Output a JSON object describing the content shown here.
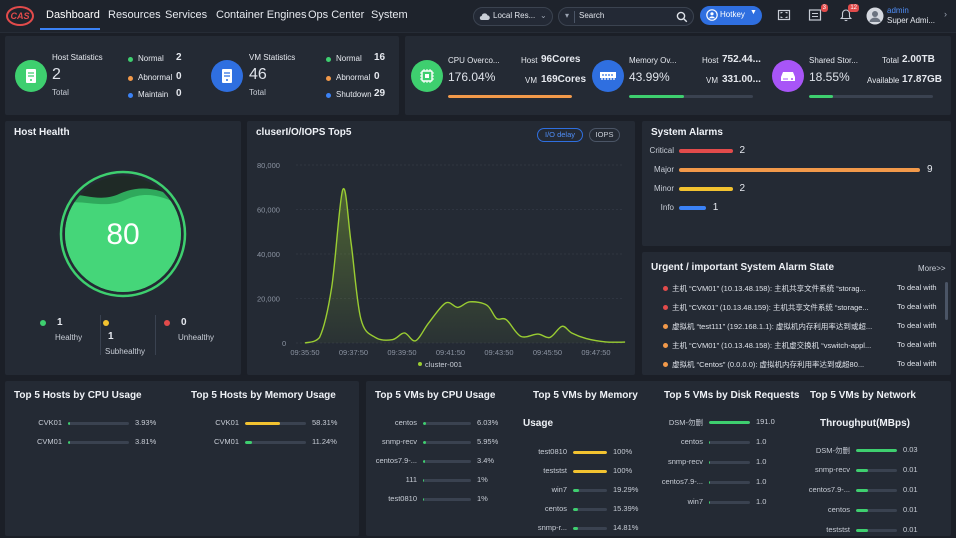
{
  "app": {
    "logo": "CAS"
  },
  "nav": [
    {
      "label": "Dashboard"
    },
    {
      "label": "Resources"
    },
    {
      "label": "Services"
    },
    {
      "label": "Container Engines"
    },
    {
      "label": "Ops Center"
    },
    {
      "label": "System"
    }
  ],
  "header": {
    "resource_select": "Local Res...",
    "search_placeholder": "Search",
    "hotkey_label": "Hotkey",
    "msg_badge": "3",
    "bell_badge": "12",
    "user_name": "admin",
    "user_role": "Super Admi..."
  },
  "host_stats": {
    "title": "Host Statistics",
    "total": "2",
    "total_label": "Total",
    "rows": [
      {
        "label": "Normal",
        "value": "2",
        "color": "#3ecf6f"
      },
      {
        "label": "Abnormal",
        "value": "0",
        "color": "#f2994a"
      },
      {
        "label": "Maintain",
        "value": "0",
        "color": "#3b82f6"
      }
    ]
  },
  "vm_stats": {
    "title": "VM Statistics",
    "total": "46",
    "total_label": "Total",
    "rows": [
      {
        "label": "Normal",
        "value": "16",
        "color": "#3ecf6f"
      },
      {
        "label": "Abnormal",
        "value": "0",
        "color": "#f2994a"
      },
      {
        "label": "Shutdown",
        "value": "29",
        "color": "#3b82f6"
      }
    ]
  },
  "cpu": {
    "title": "CPU Overco...",
    "pct": "176.04%",
    "host_label": "Host",
    "host_value": "96Cores",
    "vm_label": "VM",
    "vm_value": "169Cores",
    "fill": 1.0,
    "color": "#f2994a"
  },
  "mem": {
    "title": "Memory Ov...",
    "pct": "43.99%",
    "host_label": "Host",
    "host_value": "752.44...",
    "vm_label": "VM",
    "vm_value": "331.00...",
    "fill": 0.44,
    "color": "#3ecf6f"
  },
  "storage": {
    "title": "Shared Stor...",
    "pct": "18.55%",
    "total_label": "Total",
    "total_value": "2.00TB",
    "avail_label": "Available",
    "avail_value": "17.87GB",
    "fill": 0.19,
    "color": "#3ecf6f"
  },
  "host_health": {
    "title": "Host Health",
    "score": "80",
    "items": [
      {
        "value": "1",
        "label": "Healthy",
        "color": "#3ecf6f"
      },
      {
        "value": "1",
        "label": "Subhealthy",
        "color": "#f2c230"
      },
      {
        "value": "0",
        "label": "Unhealthy",
        "color": "#e24b4b"
      }
    ]
  },
  "iops": {
    "title": "cluserI/O/IOPS Top5",
    "btn_delay": "I/O delay",
    "btn_iops": "IOPS"
  },
  "chart_data": {
    "type": "area",
    "title": "cluserI/O/IOPS Top5",
    "x": [
      "09:35:50",
      "09:37:50",
      "09:39:50",
      "09:41:50",
      "09:43:50",
      "09:45:50",
      "09:47:50"
    ],
    "yticks": [
      "0",
      "20,000",
      "40,000",
      "60,000",
      "80,000"
    ],
    "ylim": [
      0,
      80000
    ],
    "series": [
      {
        "name": "cluster-001",
        "color": "#9acd32",
        "points": [
          [
            0,
            0
          ],
          [
            0.3,
            2500
          ],
          [
            0.55,
            25000
          ],
          [
            0.78,
            69000
          ],
          [
            0.95,
            45000
          ],
          [
            1.15,
            11000
          ],
          [
            1.45,
            2500
          ],
          [
            1.8,
            1500
          ],
          [
            2.05,
            4500
          ],
          [
            2.28,
            1000
          ],
          [
            2.55,
            9000
          ],
          [
            2.9,
            18000
          ],
          [
            3.15,
            16000
          ],
          [
            3.4,
            18500
          ],
          [
            3.75,
            17000
          ],
          [
            3.95,
            11000
          ],
          [
            4.15,
            10500
          ],
          [
            4.45,
            3000
          ],
          [
            4.8,
            4000
          ],
          [
            5.05,
            2500
          ],
          [
            5.3,
            7500
          ],
          [
            5.5,
            4500
          ],
          [
            5.8,
            2000
          ],
          [
            6.2,
            500
          ],
          [
            6.6,
            400
          ]
        ]
      }
    ],
    "legend": "bottom"
  },
  "alarms": {
    "title": "System Alarms",
    "rows": [
      {
        "label": "Critical",
        "value": 2,
        "color": "#e24b4b"
      },
      {
        "label": "Major",
        "value": 9,
        "color": "#f2994a"
      },
      {
        "label": "Minor",
        "value": 2,
        "color": "#f2c230"
      },
      {
        "label": "Info",
        "value": 1,
        "color": "#3b82f6"
      }
    ]
  },
  "urgent": {
    "title": "Urgent / important System Alarm State",
    "more": "More>>",
    "rows": [
      {
        "text": "主机 “CVM01” (10.13.48.158): 主机共享文件系统 “storag...",
        "action": "To deal with",
        "color": "#e24b4b"
      },
      {
        "text": "主机 “CVK01” (10.13.48.159): 主机共享文件系统 “storage...",
        "action": "To deal with",
        "color": "#e24b4b"
      },
      {
        "text": "虚拟机 “test111” (192.168.1.1): 虚拟机内存利用率达到或超...",
        "action": "To deal with",
        "color": "#f2994a"
      },
      {
        "text": "主机 “CVM01” (10.13.48.158): 主机虚交换机 “vswitch-appl...",
        "action": "To deal with",
        "color": "#f2994a"
      },
      {
        "text": "虚拟机 “Centos” (0.0.0.0): 虚拟机内存利用率达到或超80...",
        "action": "To deal with",
        "color": "#f2994a"
      }
    ]
  },
  "top_hosts_cpu": {
    "title": "Top 5 Hosts by CPU Usage",
    "rows": [
      {
        "name": "CVK01",
        "value": "3.93%",
        "fill": 0.04,
        "color": "#3ecf6f"
      },
      {
        "name": "CVM01",
        "value": "3.81%",
        "fill": 0.04,
        "color": "#3ecf6f"
      }
    ]
  },
  "top_hosts_mem": {
    "title": "Top 5 Hosts by Memory Usage",
    "rows": [
      {
        "name": "CVK01",
        "value": "58.31%",
        "fill": 0.58,
        "color": "#f2c230"
      },
      {
        "name": "CVM01",
        "value": "11.24%",
        "fill": 0.11,
        "color": "#3ecf6f"
      }
    ]
  },
  "top_vms_cpu": {
    "title": "Top 5 VMs by CPU Usage",
    "rows": [
      {
        "name": "centos",
        "value": "6.03%",
        "fill": 0.06
      },
      {
        "name": "snmp-recv",
        "value": "5.95%",
        "fill": 0.06
      },
      {
        "name": "centos7.9-...",
        "value": "3.4%",
        "fill": 0.04
      },
      {
        "name": "111",
        "value": "1%",
        "fill": 0.02
      },
      {
        "name": "test0810",
        "value": "1%",
        "fill": 0.02
      }
    ]
  },
  "top_vms_mem": {
    "title_line1": "Top 5 VMs by Memory",
    "title_line2": "Usage",
    "rows": [
      {
        "name": "test0810",
        "value": "100%",
        "fill": 1.0,
        "color": "#f2c230"
      },
      {
        "name": "teststst",
        "value": "100%",
        "fill": 1.0,
        "color": "#f2c230"
      },
      {
        "name": "win7",
        "value": "19.29%",
        "fill": 0.19,
        "color": "#3ecf6f"
      },
      {
        "name": "centos",
        "value": "15.39%",
        "fill": 0.15,
        "color": "#3ecf6f"
      },
      {
        "name": "snmp-r...",
        "value": "14.81%",
        "fill": 0.15,
        "color": "#3ecf6f"
      }
    ]
  },
  "top_vms_disk": {
    "title": "Top 5 VMs by Disk Requests",
    "rows": [
      {
        "name": "DSM-勿删",
        "value": "191.0",
        "fill": 1.0
      },
      {
        "name": "centos",
        "value": "1.0",
        "fill": 0.0
      },
      {
        "name": "snmp-recv",
        "value": "1.0",
        "fill": 0.0
      },
      {
        "name": "centos7.9-...",
        "value": "1.0",
        "fill": 0.0
      },
      {
        "name": "win7",
        "value": "1.0",
        "fill": 0.0
      }
    ]
  },
  "top_vms_net": {
    "title_line1": "Top 5 VMs by Network",
    "title_line2": "Throughput(MBps)",
    "rows": [
      {
        "name": "DSM-勿删",
        "value": "0.03",
        "fill": 1.0
      },
      {
        "name": "snmp-recv",
        "value": "0.01",
        "fill": 0.3
      },
      {
        "name": "centos7.9-...",
        "value": "0.01",
        "fill": 0.3
      },
      {
        "name": "centos",
        "value": "0.01",
        "fill": 0.3
      },
      {
        "name": "teststst",
        "value": "0.01",
        "fill": 0.3
      }
    ]
  }
}
